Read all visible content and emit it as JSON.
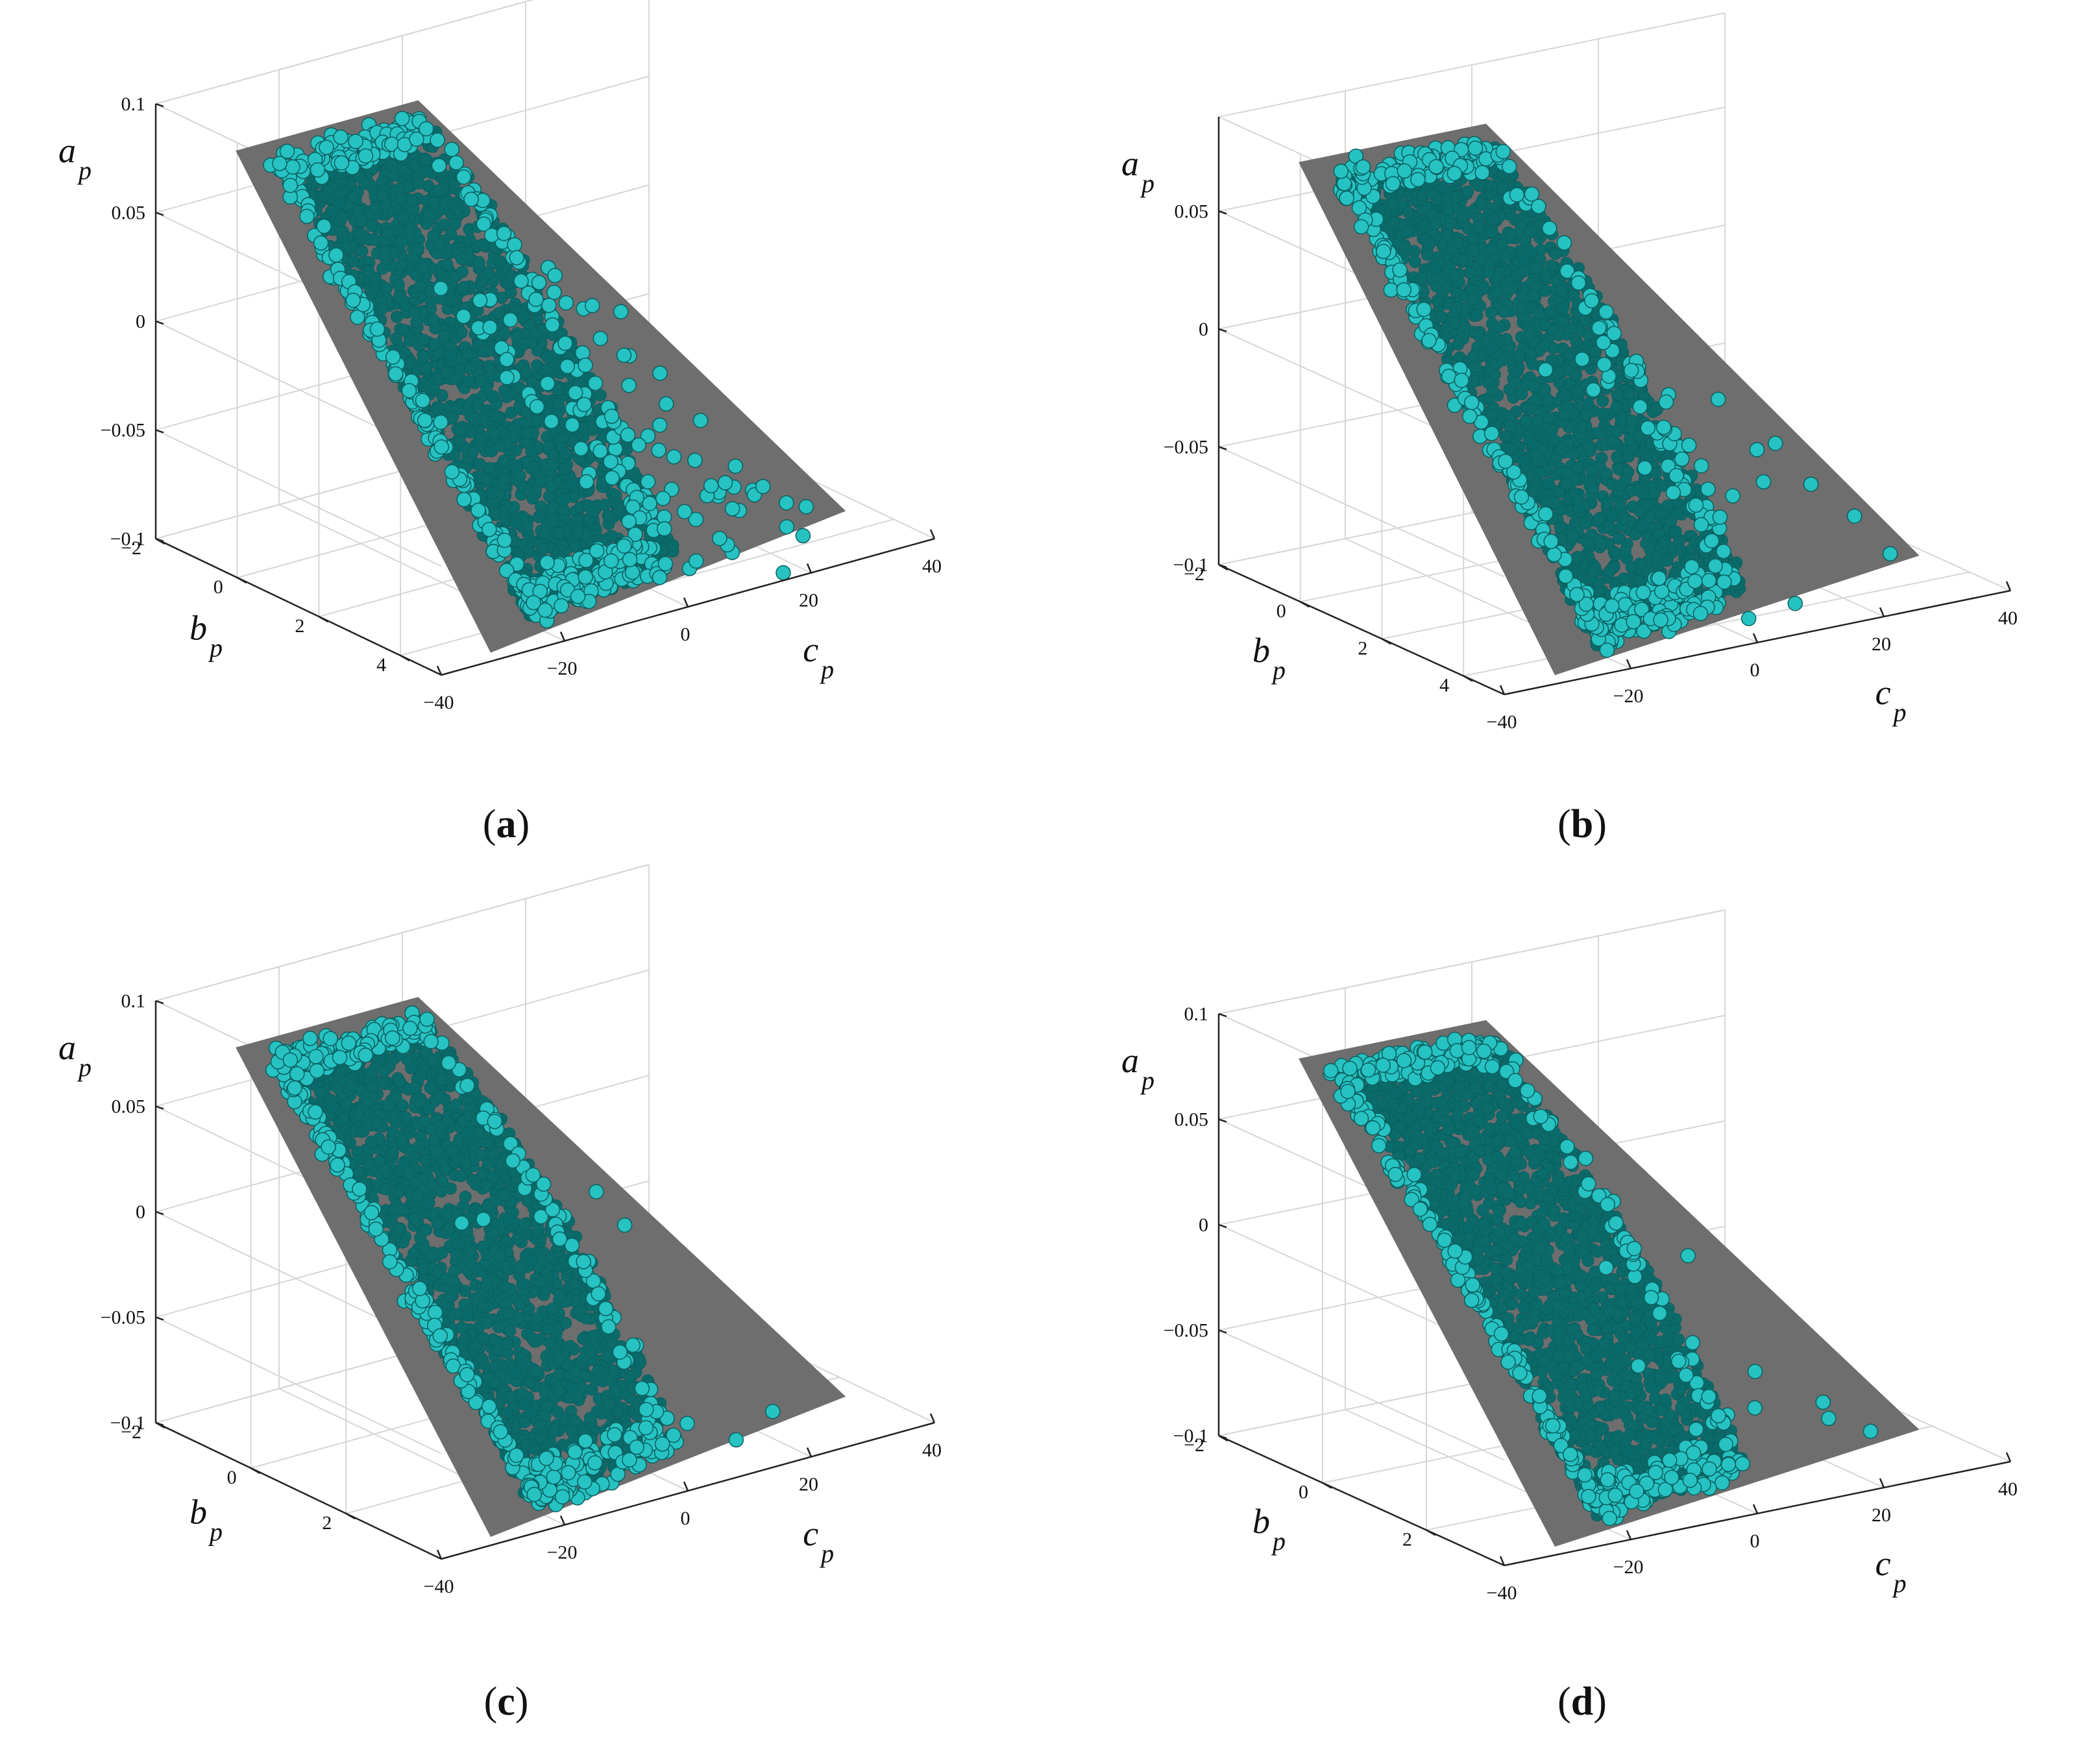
{
  "colors": {
    "plane": "#6e6e6e",
    "marker_fill": "#27c2c2",
    "marker_edge": "#0b5f5f",
    "dense_fill": "#0b6b6b",
    "grid": "#d6d6d6",
    "axis": "#222222"
  },
  "chart_data": [
    {
      "type": "scatter3d",
      "caption_letter": "a",
      "zlabel": {
        "base": "a",
        "sub": "p"
      },
      "ylabel": {
        "base": "b",
        "sub": "p"
      },
      "xlabel": {
        "base": "c",
        "sub": "p"
      },
      "xlim": [
        -40,
        40
      ],
      "ylim": [
        -2,
        5
      ],
      "zlim": [
        -0.1,
        0.1
      ],
      "x_ticks": [
        "-40",
        "-20",
        "0",
        "20",
        "40"
      ],
      "y_ticks": [
        "-2",
        "0",
        "2",
        "4"
      ],
      "z_ticks": [
        "0.1",
        "0.05",
        "0",
        "-0.05",
        "-0.1"
      ],
      "plane": {
        "description": "fitted plane",
        "z_at": {
          "c_min_b_min": 0.09,
          "c_max_b_max": -0.1
        }
      },
      "cluster": {
        "c_range": [
          -35,
          20
        ],
        "b_range": [
          -1.5,
          4.5
        ],
        "spread": 0.012,
        "outliers": "many"
      },
      "grid": true
    },
    {
      "type": "scatter3d",
      "caption_letter": "b",
      "zlabel": {
        "base": "a",
        "sub": "p"
      },
      "ylabel": {
        "base": "b",
        "sub": "p"
      },
      "xlabel": {
        "base": "c",
        "sub": "p"
      },
      "xlim": [
        -40,
        40
      ],
      "ylim": [
        -2,
        5
      ],
      "zlim": [
        -0.1,
        0.09
      ],
      "x_ticks": [
        "-40",
        "-20",
        "0",
        "20",
        "40"
      ],
      "y_ticks": [
        "-2",
        "0",
        "2",
        "4"
      ],
      "z_ticks": [
        "0.05",
        "0",
        "-0.05",
        "-0.1"
      ],
      "plane": {
        "description": "fitted plane"
      },
      "cluster": {
        "c_range": [
          -30,
          20
        ],
        "b_range": [
          -1.5,
          4.5
        ],
        "spread": 0.008,
        "outliers": "some"
      },
      "grid": true
    },
    {
      "type": "scatter3d",
      "caption_letter": "c",
      "zlabel": {
        "base": "a",
        "sub": "p"
      },
      "ylabel": {
        "base": "b",
        "sub": "p"
      },
      "xlabel": {
        "base": "c",
        "sub": "p"
      },
      "xlim": [
        -40,
        40
      ],
      "ylim": [
        -2,
        4
      ],
      "zlim": [
        -0.1,
        0.1
      ],
      "x_ticks": [
        "-40",
        "-20",
        "0",
        "20",
        "40"
      ],
      "y_ticks": [
        "-2",
        "0",
        "2"
      ],
      "z_ticks": [
        "0.1",
        "0.05",
        "0",
        "-0.05",
        "-0.1"
      ],
      "plane": {
        "description": "fitted plane"
      },
      "cluster": {
        "c_range": [
          -28,
          12
        ],
        "b_range": [
          -1.5,
          3.5
        ],
        "spread": 0.005,
        "outliers": "few"
      },
      "grid": true
    },
    {
      "type": "scatter3d",
      "caption_letter": "d",
      "zlabel": {
        "base": "a",
        "sub": "p"
      },
      "ylabel": {
        "base": "b",
        "sub": "p"
      },
      "xlabel": {
        "base": "c",
        "sub": "p"
      },
      "xlim": [
        -40,
        40
      ],
      "ylim": [
        -2,
        3.5
      ],
      "zlim": [
        -0.1,
        0.1
      ],
      "x_ticks": [
        "-40",
        "-20",
        "0",
        "20",
        "40"
      ],
      "y_ticks": [
        "-2",
        "0",
        "2"
      ],
      "z_ticks": [
        "0.1",
        "0.05",
        "0",
        "-0.05",
        "-0.1"
      ],
      "plane": {
        "description": "fitted plane"
      },
      "cluster": {
        "c_range": [
          -22,
          8
        ],
        "b_range": [
          -1.2,
          3.0
        ],
        "spread": 0.005,
        "outliers": "few"
      },
      "grid": true
    }
  ]
}
